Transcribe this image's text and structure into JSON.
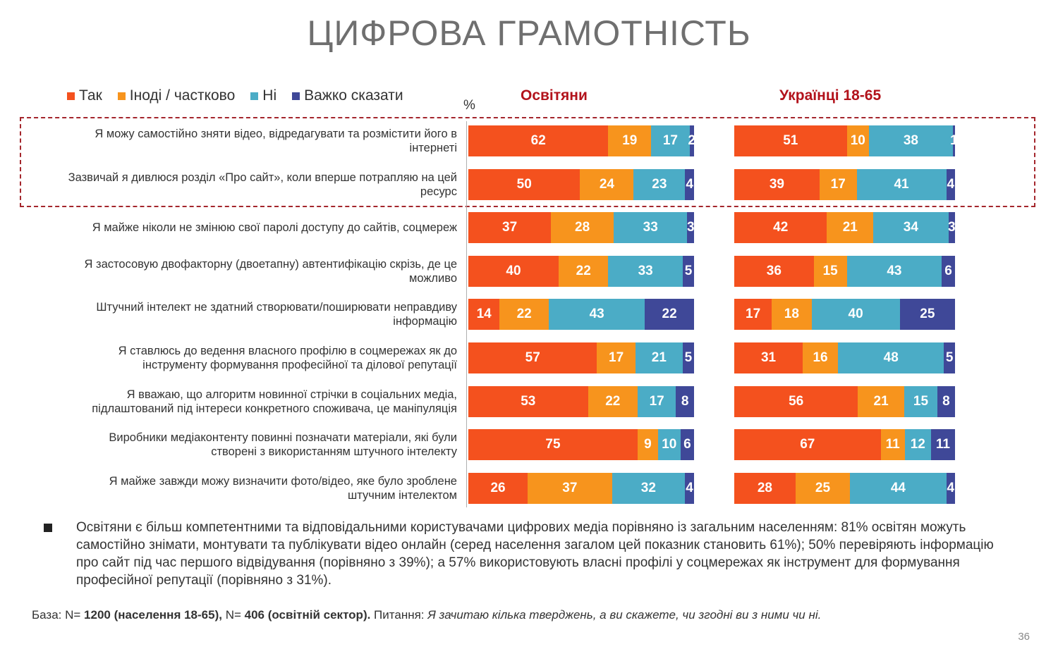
{
  "title": "ЦИФРОВА ГРАМОТНІСТЬ",
  "percent_sign": "%",
  "colors": {
    "yes": "#f4511e",
    "sometimes": "#f7941d",
    "no": "#4bacc6",
    "hard": "#3f4898"
  },
  "chart_data": {
    "type": "bar",
    "orientation": "horizontal-stacked",
    "legend": [
      "Так",
      "Іноді / частково",
      "Ні",
      "Важко сказати"
    ],
    "legend_placement": "top-left",
    "panels": [
      "Освітяни",
      "Українці 18-65"
    ],
    "categories": [
      "Я можу самостійно зняти відео, відредагувати та розмістити його в інтернеті",
      "Зазвичай я дивлюся розділ «Про сайт», коли вперше потрапляю на цей ресурс",
      "Я майже ніколи не змінюю свої паролі доступу до сайтів, соцмереж",
      "Я застосовую двофакторну (двоетапну) автентифікацію скрізь, де це можливо",
      "Штучний інтелект не здатний створювати/поширювати неправдиву інформацію",
      "Я ставлюсь до ведення власного профілю в соцмережах як до інструменту формування професійної та ділової репутації",
      "Я вважаю, що алгоритм новинної стрічки в соціальних медіа, підлаштований під інтереси конкретного споживача, це маніпуляція",
      "Виробники медіаконтенту повинні позначати матеріали, які були створені з використанням штучного інтелекту",
      "Я майже завжди можу визначити фото/відео, яке було зроблене штучним інтелектом"
    ],
    "educators": [
      [
        62,
        19,
        17,
        2
      ],
      [
        50,
        24,
        23,
        4
      ],
      [
        37,
        28,
        33,
        3
      ],
      [
        40,
        22,
        33,
        5
      ],
      [
        14,
        22,
        43,
        22
      ],
      [
        57,
        17,
        21,
        5
      ],
      [
        53,
        22,
        17,
        8
      ],
      [
        75,
        9,
        10,
        6
      ],
      [
        26,
        37,
        32,
        4
      ]
    ],
    "population": [
      [
        51,
        10,
        38,
        1
      ],
      [
        39,
        17,
        41,
        4
      ],
      [
        42,
        21,
        34,
        3
      ],
      [
        36,
        15,
        43,
        6
      ],
      [
        17,
        18,
        40,
        25
      ],
      [
        31,
        16,
        48,
        5
      ],
      [
        56,
        21,
        15,
        8
      ],
      [
        67,
        11,
        12,
        11
      ],
      [
        28,
        25,
        44,
        4
      ]
    ]
  },
  "note": "Освітяни є більш компетентними та відповідальними користувачами цифрових медіа порівняно із загальним населенням: 81% освітян можуть самостійно знімати, монтувати та публікувати відео онлайн (серед населення загалом цей показник становить 61%); 50% перевіряють інформацію про сайт під час першого відвідування (порівняно з 39%); а 57% використовують власні профілі у соцмережах як інструмент для формування професійної репутації (порівняно з 31%).",
  "base": {
    "prefix": "База: N= ",
    "n1": "1200 (населення 18-65),",
    "mid": " N= ",
    "n2": "406 (освітній сектор).",
    "question_label": " Питання: ",
    "question": "Я зачитаю кілька тверджень, а ви скажете, чи згодні ви з ними чи ні."
  },
  "page_number": "36"
}
